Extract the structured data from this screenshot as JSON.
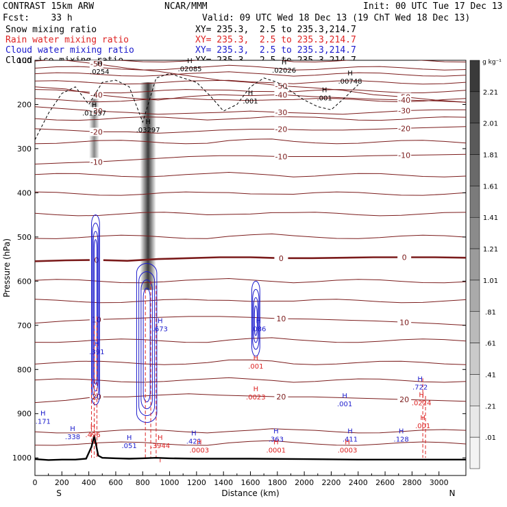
{
  "header": {
    "title": "CONTRAST 15km ARW",
    "center": "NCAR/MMM",
    "init": "Init: 00 UTC Tue 17 Dec 13",
    "fcst": "Fcst:    33 h",
    "valid": "Valid: 09 UTC Wed 18 Dec 13 (19 ChT Wed 18 Dec 13)",
    "fields": [
      {
        "name": "Snow mixing ratio",
        "xy": "XY= 235.3,  2.5 to 235.3,214.7",
        "color": "#000000"
      },
      {
        "name": "Rain water mixing ratio",
        "xy": "XY= 235.3,  2.5 to 235.3,214.7",
        "color": "#dd2222"
      },
      {
        "name": "Cloud water mixing ratio",
        "xy": "XY= 235.3,  2.5 to 235.3,214.7",
        "color": "#1a1acc"
      },
      {
        "name": "Cloud ice mixing ratio",
        "xy": "XY= 235.3,  2.5 to 235.3,214.7",
        "color": "#000000"
      }
    ]
  },
  "chart_data": {
    "type": "cross-section",
    "xlabel": "Distance (km)",
    "ylabel": "Pressure (hPa)",
    "xlim": [
      0,
      3200
    ],
    "ylim": [
      1040,
      100
    ],
    "xticks": [
      0,
      100,
      200,
      300,
      400,
      500,
      600,
      700,
      800,
      900,
      1000,
      1100,
      1200,
      1300,
      1400,
      1500,
      1600,
      1700,
      1800,
      1900,
      2000,
      2100,
      2200,
      2300,
      2400,
      2500,
      2600,
      2700,
      2800,
      2900,
      3000
    ],
    "xtick_labels": [
      "0",
      "200",
      "400",
      "600",
      "800",
      "1000",
      "1200",
      "1400",
      "1600",
      "1800",
      "2000",
      "2200",
      "2400",
      "2600",
      "2800",
      "3000"
    ],
    "yticks": [
      100,
      200,
      300,
      400,
      500,
      600,
      700,
      800,
      900,
      1000
    ],
    "x_end_labels": {
      "left": "S",
      "right": "N"
    },
    "colorbar": {
      "unit": "g kg⁻¹",
      "labels": [
        "2.21",
        "2.01",
        "1.81",
        "1.61",
        "1.41",
        "1.21",
        "1.01",
        ".81",
        ".61",
        ".41",
        ".21",
        ".01"
      ],
      "colors": [
        "#3a3a3a",
        "#4a4a4a",
        "#5a5a5a",
        "#6a6a6a",
        "#7b7b7b",
        "#8b8b8b",
        "#9b9b9b",
        "#aaaaaa",
        "#bababa",
        "#cacaca",
        "#d9d9d9",
        "#e8e8e8",
        "#f3f3f3"
      ]
    },
    "temperature_isotherms": [
      {
        "label": "-50",
        "p": [
          95,
          100,
          108,
          118,
          125,
          135,
          145,
          150,
          158,
          162,
          168,
          178,
          183,
          190,
          195
        ]
      },
      {
        "label": "-40",
        "p": [
          160,
          165,
          178,
          185,
          190,
          182,
          178,
          180,
          178,
          182,
          185,
          188,
          190,
          192,
          195
        ]
      },
      {
        "label": "-30",
        "p": [
          205,
          210,
          215,
          218,
          222,
          220,
          218,
          215,
          218,
          220,
          222,
          218,
          214,
          212,
          212
        ]
      },
      {
        "label": "-20",
        "p": [
          255,
          258,
          262,
          262,
          265,
          262,
          258,
          256,
          256,
          258,
          258,
          256,
          254,
          252,
          250
        ]
      },
      {
        "label": "-10",
        "p": [
          335,
          332,
          330,
          326,
          322,
          318,
          316,
          316,
          318,
          318,
          318,
          316,
          315,
          314,
          313
        ]
      },
      {
        "label": "0",
        "p": [
          555,
          553,
          552,
          554,
          550,
          548,
          546,
          546,
          548,
          548,
          547,
          546,
          546,
          546,
          547
        ]
      },
      {
        "label": "10",
        "p": [
          695,
          690,
          687,
          685,
          682,
          680,
          680,
          682,
          685,
          686,
          688,
          690,
          693,
          696,
          700
        ]
      },
      {
        "label": "20",
        "p": [
          875,
          870,
          862,
          862,
          858,
          855,
          858,
          860,
          862,
          862,
          864,
          866,
          868,
          870,
          872
        ]
      }
    ],
    "other_isotherm_levels": [
      100,
      118,
      132,
      150,
      170,
      190,
      232,
      285,
      360,
      402,
      448,
      500,
      600,
      645,
      735,
      785,
      825,
      940,
      968
    ],
    "snow_shading": [
      {
        "x": 440,
        "p_top": 180,
        "p_bottom": 330,
        "max": 0.8
      },
      {
        "x": 840,
        "p_top": 150,
        "p_bottom": 620,
        "max": 2.21
      }
    ],
    "cloud_ice_contours": [
      {
        "label": ".001",
        "x": [
          0,
          100,
          200,
          300,
          400,
          500,
          600,
          700,
          800,
          900,
          1000,
          1100,
          1200,
          1300,
          1400,
          1500,
          1600,
          1700,
          1800,
          1900,
          2000,
          2100,
          2200,
          2300,
          2400
        ],
        "p": [
          280,
          220,
          175,
          160,
          200,
          150,
          145,
          160,
          240,
          140,
          130,
          140,
          150,
          180,
          215,
          200,
          160,
          140,
          150,
          170,
          190,
          205,
          212,
          185,
          155
        ]
      }
    ],
    "cloud_water_contours": [
      {
        "label": ".001",
        "x": [
          420,
          430,
          450,
          470,
          480
        ],
        "p": [
          450,
          600,
          880,
          600,
          450
        ]
      },
      {
        "label": ".001",
        "x": [
          760,
          790,
          830,
          880,
          910
        ],
        "p": [
          560,
          700,
          920,
          700,
          560
        ]
      },
      {
        "label": ".001",
        "x": [
          1600,
          1620,
          1640,
          1660
        ],
        "p": [
          600,
          700,
          770,
          600
        ]
      }
    ],
    "rain_water_contours": [
      {
        "label": ".001",
        "x": [
          420,
          440,
          460,
          480
        ],
        "p": [
          820,
          700,
          680,
          1000
        ]
      },
      {
        "label": ".001",
        "x": [
          820,
          860,
          900,
          930
        ],
        "p": [
          620,
          600,
          610,
          1010
        ]
      },
      {
        "label": ".001",
        "x": [
          2880,
          2900,
          2920
        ],
        "p": [
          820,
          860,
          1000
        ]
      }
    ],
    "maxima_annotations": [
      {
        "x": 480,
        "p": 128,
        "value": ".0254",
        "color": "#000000"
      },
      {
        "x": 1150,
        "p": 122,
        "value": ".02085",
        "color": "#000000"
      },
      {
        "x": 1850,
        "p": 125,
        "value": ".02026",
        "color": "#000000"
      },
      {
        "x": 2340,
        "p": 150,
        "value": ".00748",
        "color": "#000000"
      },
      {
        "x": 440,
        "p": 222,
        "value": ".01537",
        "color": "#000000"
      },
      {
        "x": 840,
        "p": 260,
        "value": ".03297",
        "color": "#000000"
      },
      {
        "x": 2150,
        "p": 188,
        "value": ".001",
        "color": "#000000"
      },
      {
        "x": 1600,
        "p": 195,
        "value": ".001",
        "color": "#000000"
      },
      {
        "x": 460,
        "p": 762,
        "value": ".391",
        "color": "#1a1acc"
      },
      {
        "x": 930,
        "p": 710,
        "value": ".673",
        "color": "#1a1acc"
      },
      {
        "x": 1660,
        "p": 710,
        "value": ".086",
        "color": "#1a1acc"
      },
      {
        "x": 60,
        "p": 920,
        "value": ".171",
        "color": "#1a1acc"
      },
      {
        "x": 280,
        "p": 955,
        "value": ".338",
        "color": "#1a1acc"
      },
      {
        "x": 700,
        "p": 975,
        "value": ".051",
        "color": "#1a1acc"
      },
      {
        "x": 1180,
        "p": 965,
        "value": ".421",
        "color": "#1a1acc"
      },
      {
        "x": 1790,
        "p": 960,
        "value": ".363",
        "color": "#1a1acc"
      },
      {
        "x": 2340,
        "p": 960,
        "value": ".411",
        "color": "#1a1acc"
      },
      {
        "x": 2720,
        "p": 960,
        "value": ".128",
        "color": "#1a1acc"
      },
      {
        "x": 2860,
        "p": 842,
        "value": ".722",
        "color": "#1a1acc"
      },
      {
        "x": 2300,
        "p": 880,
        "value": ".001",
        "color": "#1a1acc"
      },
      {
        "x": 430,
        "p": 950,
        "value": ".496",
        "color": "#dd2222"
      },
      {
        "x": 930,
        "p": 975,
        "value": ".3944",
        "color": "#dd2222"
      },
      {
        "x": 1640,
        "p": 865,
        "value": ".0023",
        "color": "#dd2222"
      },
      {
        "x": 2870,
        "p": 878,
        "value": ".0224",
        "color": "#dd2222"
      },
      {
        "x": 1220,
        "p": 985,
        "value": ".0003",
        "color": "#dd2222"
      },
      {
        "x": 1790,
        "p": 985,
        "value": ".0001",
        "color": "#dd2222"
      },
      {
        "x": 2320,
        "p": 985,
        "value": ".0003",
        "color": "#dd2222"
      },
      {
        "x": 2880,
        "p": 930,
        "value": ".001",
        "color": "#dd2222"
      },
      {
        "x": 1640,
        "p": 795,
        "value": ".001",
        "color": "#dd2222"
      }
    ],
    "terrain_pressure": [
      {
        "x": 0,
        "p": 1003
      },
      {
        "x": 100,
        "p": 1005
      },
      {
        "x": 200,
        "p": 1004
      },
      {
        "x": 300,
        "p": 1004
      },
      {
        "x": 380,
        "p": 1002
      },
      {
        "x": 420,
        "p": 975
      },
      {
        "x": 440,
        "p": 950
      },
      {
        "x": 470,
        "p": 995
      },
      {
        "x": 500,
        "p": 1000
      },
      {
        "x": 600,
        "p": 1001
      },
      {
        "x": 700,
        "p": 1002
      },
      {
        "x": 800,
        "p": 1001
      },
      {
        "x": 900,
        "p": 1000
      },
      {
        "x": 1000,
        "p": 1001
      },
      {
        "x": 1200,
        "p": 1002
      },
      {
        "x": 1600,
        "p": 1002
      },
      {
        "x": 2000,
        "p": 1003
      },
      {
        "x": 2400,
        "p": 1004
      },
      {
        "x": 2800,
        "p": 1004
      },
      {
        "x": 3200,
        "p": 1004
      }
    ]
  }
}
